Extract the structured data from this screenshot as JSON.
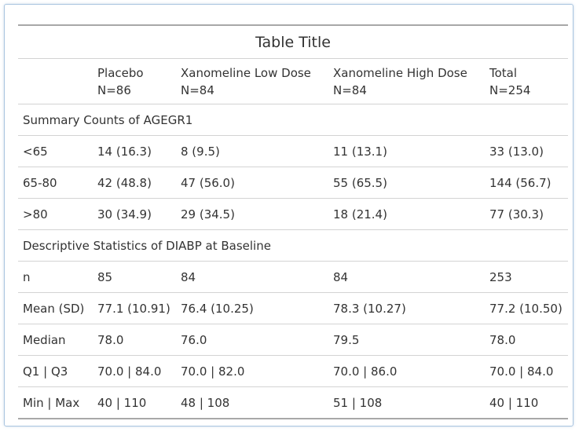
{
  "table": {
    "title": "Table Title",
    "columns": [
      {
        "name": "Placebo",
        "n": "N=86"
      },
      {
        "name": "Xanomeline Low Dose",
        "n": "N=84"
      },
      {
        "name": "Xanomeline High Dose",
        "n": "N=84"
      },
      {
        "name": "Total",
        "n": "N=254"
      }
    ],
    "groups": [
      {
        "label": "Summary Counts of AGEGR1",
        "rows": [
          {
            "label": "<65",
            "cells": [
              "14 (16.3)",
              "8 (9.5)",
              "11 (13.1)",
              "33 (13.0)"
            ]
          },
          {
            "label": "65-80",
            "cells": [
              "42 (48.8)",
              "47 (56.0)",
              "55 (65.5)",
              "144 (56.7)"
            ]
          },
          {
            "label": ">80",
            "cells": [
              "30 (34.9)",
              "29 (34.5)",
              "18 (21.4)",
              "77 (30.3)"
            ]
          }
        ]
      },
      {
        "label": "Descriptive Statistics of DIABP at Baseline",
        "rows": [
          {
            "label": "n",
            "cells": [
              "85",
              "84",
              "84",
              "253"
            ]
          },
          {
            "label": "Mean (SD)",
            "cells": [
              "77.1 (10.91)",
              "76.4 (10.25)",
              "78.3 (10.27)",
              "77.2 (10.50)"
            ]
          },
          {
            "label": "Median",
            "cells": [
              "78.0",
              "76.0",
              "79.5",
              "78.0"
            ]
          },
          {
            "label": "Q1 | Q3",
            "cells": [
              "70.0 | 84.0",
              "70.0 | 82.0",
              "70.0 | 86.0",
              "70.0 | 84.0"
            ]
          },
          {
            "label": "Min | Max",
            "cells": [
              "40 | 110",
              "48 | 108",
              "51 | 108",
              "40 | 110"
            ]
          }
        ]
      }
    ]
  }
}
